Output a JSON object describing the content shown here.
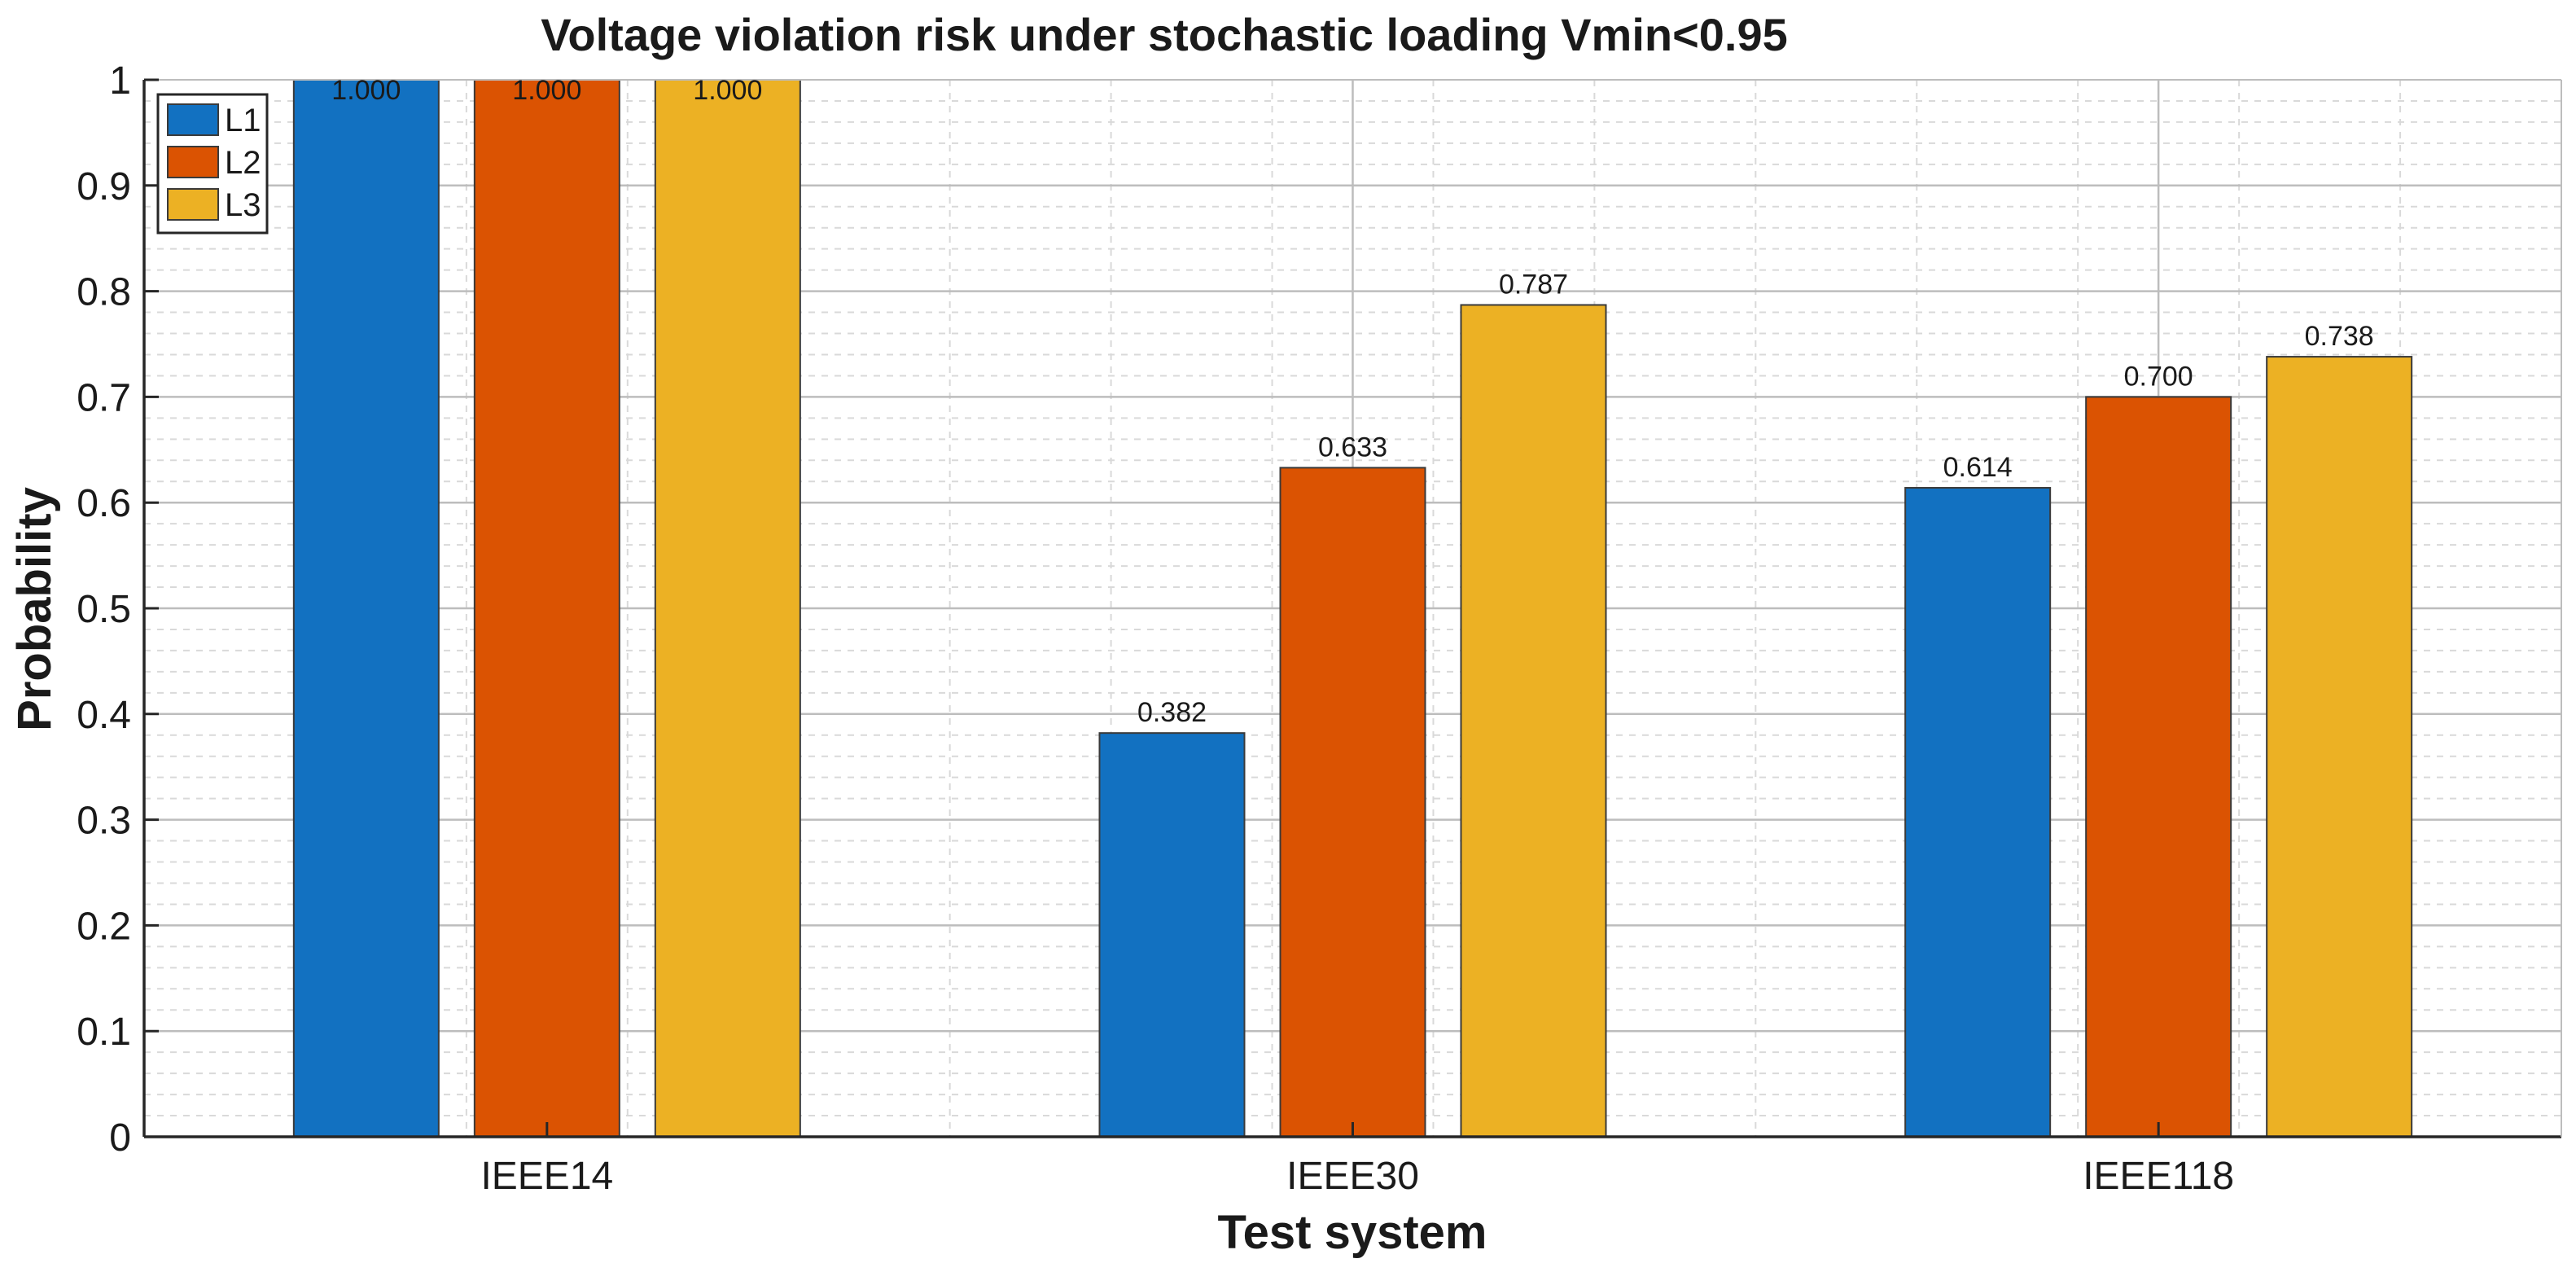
{
  "chart_data": {
    "type": "bar",
    "title": "Voltage violation risk under stochastic loading Vmin<0.95",
    "xlabel": "Test system",
    "ylabel": "Probability",
    "categories": [
      "IEEE14",
      "IEEE30",
      "IEEE118"
    ],
    "series": [
      {
        "name": "L1",
        "color": "#1271c1",
        "values": [
          1.0,
          0.382,
          0.614
        ],
        "labels": [
          "1.000",
          "0.382",
          "0.614"
        ]
      },
      {
        "name": "L2",
        "color": "#db5302",
        "values": [
          1.0,
          0.633,
          0.7
        ],
        "labels": [
          "1.000",
          "0.633",
          "0.700"
        ]
      },
      {
        "name": "L3",
        "color": "#ecb124",
        "values": [
          1.0,
          0.787,
          0.738
        ],
        "labels": [
          "1.000",
          "0.787",
          "0.738"
        ]
      }
    ],
    "ylim": [
      0,
      1
    ],
    "yticks": [
      "0",
      "0.1",
      "0.2",
      "0.3",
      "0.4",
      "0.5",
      "0.6",
      "0.7",
      "0.8",
      "0.9",
      "1"
    ],
    "grid": true,
    "minor_grid": true,
    "legend_position": "top-left"
  }
}
